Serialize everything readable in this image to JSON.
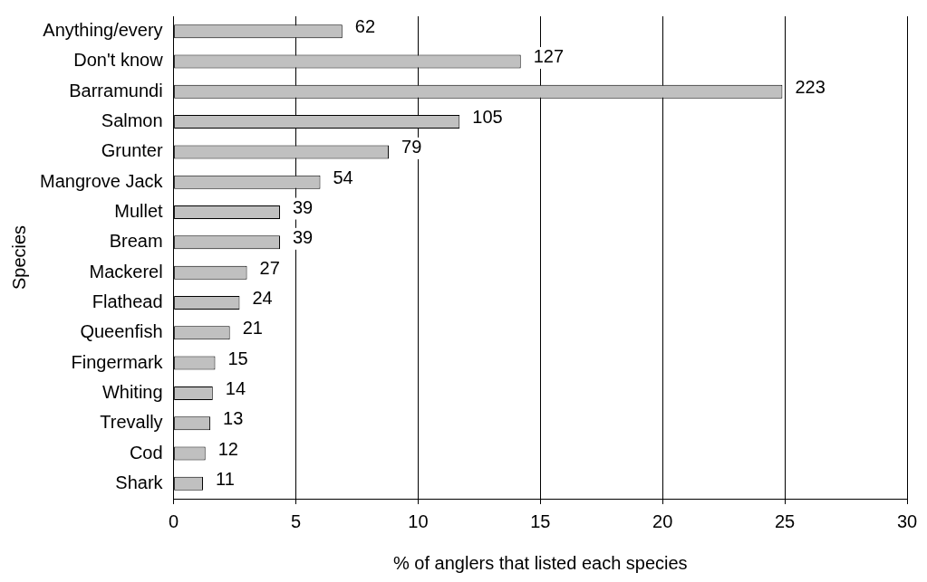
{
  "chart_data": {
    "type": "bar",
    "orientation": "horizontal",
    "xlabel": "% of anglers that listed each species",
    "ylabel": "Species",
    "categories": [
      "Anything/every",
      "Don't know",
      "Barramundi",
      "Salmon",
      "Grunter",
      "Mangrove Jack",
      "Mullet",
      "Bream",
      "Mackerel",
      "Flathead",
      "Queenfish",
      "Fingermark",
      "Whiting",
      "Trevally",
      "Cod",
      "Shark"
    ],
    "values": [
      6.9,
      14.2,
      24.9,
      11.7,
      8.8,
      6.0,
      4.35,
      4.35,
      3.0,
      2.7,
      2.3,
      1.7,
      1.6,
      1.5,
      1.3,
      1.2
    ],
    "annotations": [
      {
        "text": "62",
        "x": 6.9,
        "y": "Anything/every"
      },
      {
        "text": "127",
        "x": 14.2,
        "y": "Don't know"
      },
      {
        "text": "223",
        "x": 24.9,
        "y": "Barramundi"
      },
      {
        "text": "105",
        "x": 11.7,
        "y": "Salmon"
      },
      {
        "text": "79",
        "x": 8.8,
        "y": "Grunter"
      },
      {
        "text": "54",
        "x": 6.0,
        "y": "Mangrove Jack"
      },
      {
        "text": "39",
        "x": 4.35,
        "y": "Mullet"
      },
      {
        "text": "39",
        "x": 4.35,
        "y": "Bream"
      },
      {
        "text": "27",
        "x": 3.0,
        "y": "Mackerel"
      },
      {
        "text": "24",
        "x": 2.7,
        "y": "Flathead"
      },
      {
        "text": "21",
        "x": 2.3,
        "y": "Queenfish"
      },
      {
        "text": "15",
        "x": 1.7,
        "y": "Fingermark"
      },
      {
        "text": "14",
        "x": 1.6,
        "y": "Whiting"
      },
      {
        "text": "13",
        "x": 1.5,
        "y": "Trevally"
      },
      {
        "text": "12",
        "x": 1.3,
        "y": "Cod"
      },
      {
        "text": "11",
        "x": 1.2,
        "y": "Shark"
      }
    ],
    "color": "#c0c0c0",
    "xlim": [
      0,
      30
    ],
    "xticks": [
      0,
      5,
      10,
      15,
      20,
      25,
      30
    ],
    "grid": "x",
    "legend": false
  }
}
